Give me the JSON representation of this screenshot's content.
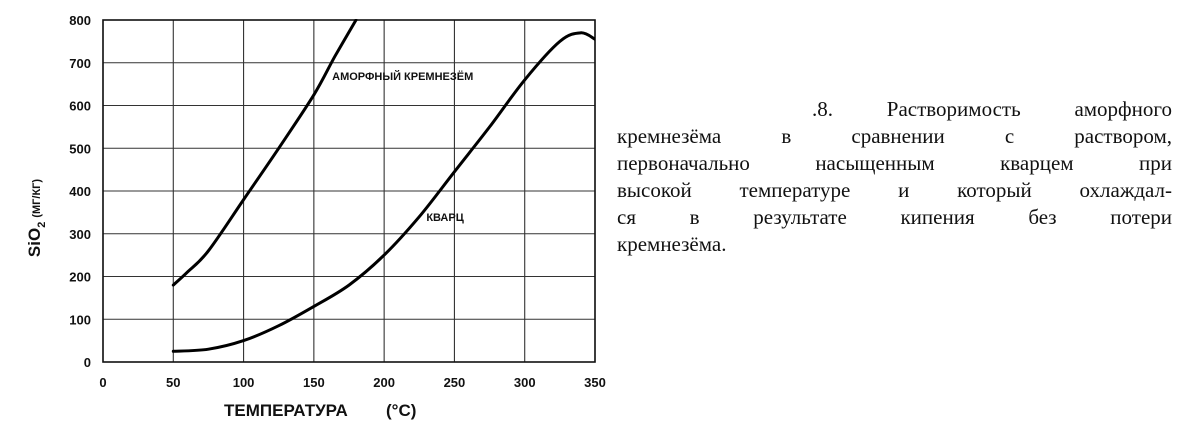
{
  "chart_data": {
    "type": "line",
    "xlabel": "ТЕМПЕРАТУРА",
    "xunit": "(°С)",
    "ylabel_main": "SiO",
    "ylabel_sub": "2",
    "yunit": "(МГ/КГ)",
    "xlim": [
      0,
      350
    ],
    "ylim": [
      0,
      800
    ],
    "xticks": [
      0,
      50,
      100,
      150,
      200,
      250,
      300,
      350
    ],
    "yticks": [
      0,
      100,
      200,
      300,
      400,
      500,
      600,
      700,
      800
    ],
    "grid": true,
    "series": [
      {
        "name": "АМОРФНЫЙ КРЕМНЕЗЁМ",
        "color": "#000000",
        "x": [
          50,
          60,
          75,
          100,
          125,
          150,
          165,
          180
        ],
        "y": [
          180,
          210,
          260,
          380,
          500,
          625,
          715,
          800
        ]
      },
      {
        "name": "КВАРЦ",
        "color": "#000000",
        "x": [
          50,
          75,
          100,
          125,
          150,
          175,
          200,
          225,
          250,
          275,
          300,
          325,
          340,
          350
        ],
        "y": [
          25,
          30,
          50,
          85,
          130,
          180,
          250,
          340,
          445,
          550,
          660,
          750,
          770,
          755
        ]
      }
    ]
  },
  "caption": {
    "lines": [
      ".8. Растворимость аморфного",
      "кремнезёма в сравнении с раствором,",
      "первоначально насыщенным кварцем при",
      "высокой температуре и который охлаждал-",
      "ся в результате кипения без потери",
      "кремнезёма."
    ]
  }
}
